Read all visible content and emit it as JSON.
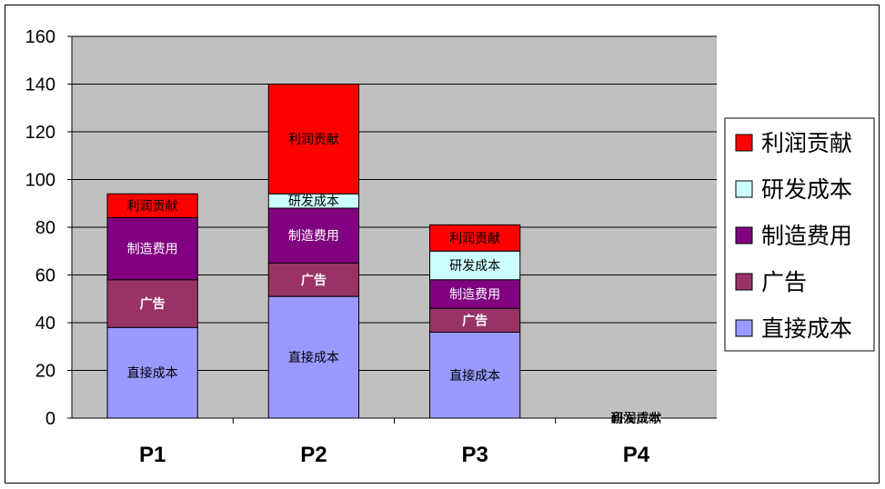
{
  "chart_data": {
    "type": "bar",
    "stacked": true,
    "categories": [
      "P1",
      "P2",
      "P3",
      "P4"
    ],
    "ylim": [
      0,
      160
    ],
    "yticks": [
      0,
      20,
      40,
      60,
      80,
      100,
      120,
      140,
      160
    ],
    "grid": true,
    "legend_position": "right",
    "plot_background": "#c0c0c0",
    "series": [
      {
        "name": "直接成本",
        "color": "#9999ff",
        "label_color": "#000000",
        "bold": false,
        "values": [
          38,
          51,
          36,
          0
        ]
      },
      {
        "name": "广告",
        "color": "#993366",
        "label_color": "#ffffff",
        "bold": true,
        "values": [
          20,
          14,
          10,
          0
        ]
      },
      {
        "name": "制造费用",
        "color": "#800080",
        "label_color": "#ffffff",
        "bold": false,
        "values": [
          26,
          23,
          12,
          0
        ]
      },
      {
        "name": "研发成本",
        "color": "#ccffff",
        "label_color": "#000000",
        "bold": false,
        "values": [
          0,
          6,
          12,
          0
        ]
      },
      {
        "name": "利润贡献",
        "color": "#ff0000",
        "label_color": "#000000",
        "bold": false,
        "values": [
          10,
          46,
          11,
          0
        ]
      }
    ]
  }
}
